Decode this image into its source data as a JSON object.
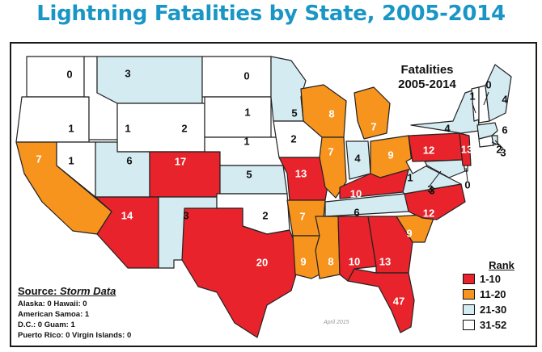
{
  "title": "Lightning Fatalities by State, 2005-2014",
  "map_title_line1": "Fatalities",
  "map_title_line2": "2005-2014",
  "legend": {
    "title": "Rank",
    "items": [
      {
        "label": "1-10",
        "color": "#e8232b"
      },
      {
        "label": "11-20",
        "color": "#f7941e"
      },
      {
        "label": "21-30",
        "color": "#d4ebf2"
      },
      {
        "label": "31-52",
        "color": "#ffffff"
      }
    ]
  },
  "source": {
    "prefix": "Source: ",
    "name": "Storm Data",
    "lines": [
      "Alaska: 0   Hawaii: 0",
      "American Samoa: 1",
      "D.C.: 0   Guam: 1",
      "Puerto Rico: 0   Virgin Islands: 0"
    ]
  },
  "date_note": "April 2015",
  "chart_data": {
    "type": "choropleth",
    "states": [
      {
        "state": "WA",
        "value": 0,
        "rank_class": "31-52"
      },
      {
        "state": "OR",
        "value": 1,
        "rank_class": "31-52"
      },
      {
        "state": "CA",
        "value": 7,
        "rank_class": "11-20"
      },
      {
        "state": "NV",
        "value": 1,
        "rank_class": "31-52"
      },
      {
        "state": "ID",
        "value": 1,
        "rank_class": "31-52"
      },
      {
        "state": "MT",
        "value": 3,
        "rank_class": "21-30"
      },
      {
        "state": "WY",
        "value": 2,
        "rank_class": "31-52"
      },
      {
        "state": "UT",
        "value": 6,
        "rank_class": "21-30"
      },
      {
        "state": "CO",
        "value": 17,
        "rank_class": "1-10"
      },
      {
        "state": "AZ",
        "value": 14,
        "rank_class": "1-10"
      },
      {
        "state": "NM",
        "value": 3,
        "rank_class": "21-30"
      },
      {
        "state": "ND",
        "value": 0,
        "rank_class": "31-52"
      },
      {
        "state": "SD",
        "value": 1,
        "rank_class": "31-52"
      },
      {
        "state": "NE",
        "value": 1,
        "rank_class": "31-52"
      },
      {
        "state": "KS",
        "value": 5,
        "rank_class": "21-30"
      },
      {
        "state": "OK",
        "value": 2,
        "rank_class": "31-52"
      },
      {
        "state": "TX",
        "value": 20,
        "rank_class": "1-10"
      },
      {
        "state": "MN",
        "value": 5,
        "rank_class": "21-30"
      },
      {
        "state": "IA",
        "value": 2,
        "rank_class": "31-52"
      },
      {
        "state": "MO",
        "value": 13,
        "rank_class": "1-10"
      },
      {
        "state": "AR",
        "value": 7,
        "rank_class": "11-20"
      },
      {
        "state": "LA",
        "value": 9,
        "rank_class": "11-20"
      },
      {
        "state": "WI",
        "value": 8,
        "rank_class": "11-20"
      },
      {
        "state": "IL",
        "value": 7,
        "rank_class": "11-20"
      },
      {
        "state": "MI",
        "value": 7,
        "rank_class": "11-20"
      },
      {
        "state": "IN",
        "value": 4,
        "rank_class": "21-30"
      },
      {
        "state": "OH",
        "value": 9,
        "rank_class": "11-20"
      },
      {
        "state": "KY",
        "value": 10,
        "rank_class": "1-10"
      },
      {
        "state": "TN",
        "value": 6,
        "rank_class": "21-30"
      },
      {
        "state": "MS",
        "value": 8,
        "rank_class": "11-20"
      },
      {
        "state": "AL",
        "value": 10,
        "rank_class": "1-10"
      },
      {
        "state": "GA",
        "value": 13,
        "rank_class": "1-10"
      },
      {
        "state": "FL",
        "value": 47,
        "rank_class": "1-10"
      },
      {
        "state": "SC",
        "value": 9,
        "rank_class": "11-20"
      },
      {
        "state": "NC",
        "value": 12,
        "rank_class": "1-10"
      },
      {
        "state": "VA",
        "value": 3,
        "rank_class": "21-30"
      },
      {
        "state": "WV",
        "value": 1,
        "rank_class": "31-52"
      },
      {
        "state": "PA",
        "value": 12,
        "rank_class": "1-10"
      },
      {
        "state": "NY",
        "value": 4,
        "rank_class": "21-30"
      },
      {
        "state": "MD",
        "value": 3,
        "rank_class": "21-30"
      },
      {
        "state": "DE",
        "value": 0,
        "rank_class": "31-52"
      },
      {
        "state": "NJ",
        "value": 13,
        "rank_class": "1-10"
      },
      {
        "state": "CT",
        "value": 2,
        "rank_class": "31-52"
      },
      {
        "state": "RI",
        "value": 3,
        "rank_class": "21-30"
      },
      {
        "state": "MA",
        "value": 6,
        "rank_class": "21-30"
      },
      {
        "state": "VT",
        "value": 1,
        "rank_class": "31-52"
      },
      {
        "state": "NH",
        "value": 0,
        "rank_class": "31-52"
      },
      {
        "state": "ME",
        "value": 4,
        "rank_class": "21-30"
      }
    ]
  }
}
